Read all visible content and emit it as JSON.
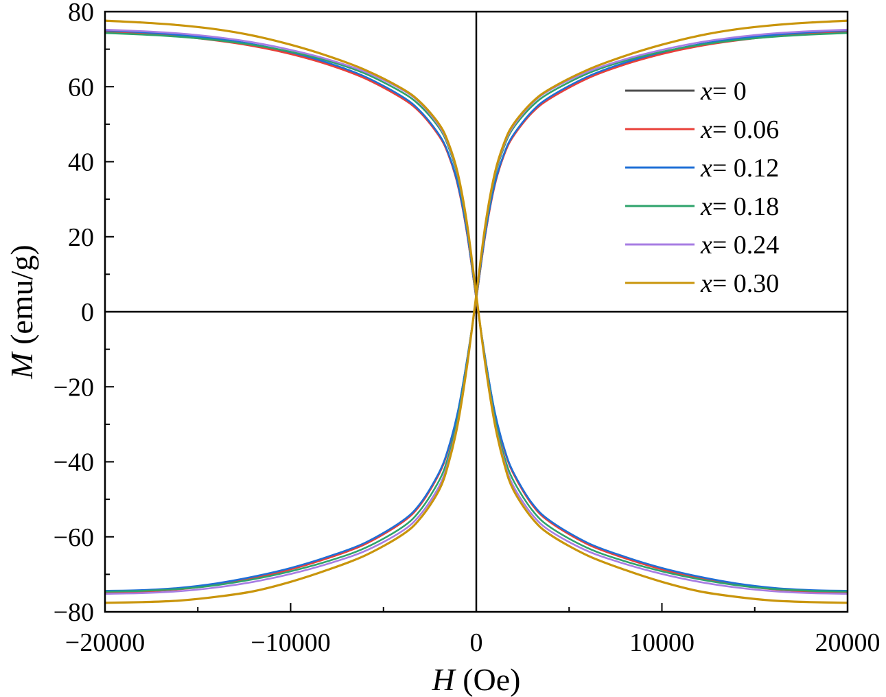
{
  "chart_data": {
    "type": "line",
    "title": "",
    "xlabel": {
      "symbol": "H",
      "unit": "(Oe)"
    },
    "ylabel": {
      "symbol": "M",
      "unit": "(emu/g)"
    },
    "xlim": [
      -20000,
      20000
    ],
    "ylim": [
      -80,
      80
    ],
    "xticks": [
      -20000,
      -10000,
      0,
      10000,
      20000
    ],
    "xtick_labels": [
      "−20000",
      "−10000",
      "0",
      "10000",
      "20000"
    ],
    "yticks": [
      -80,
      -60,
      -40,
      -20,
      0,
      20,
      40,
      60,
      80
    ],
    "ytick_labels": [
      "−80",
      "−60",
      "−40",
      "−20",
      "0",
      "20",
      "40",
      "60",
      "80"
    ],
    "grid": false,
    "zero_lines": true,
    "legend_position": "top-right",
    "x": [
      -20000,
      -18000,
      -16000,
      -14000,
      -12000,
      -10000,
      -8000,
      -6000,
      -4000,
      -3000,
      -2000,
      -1500,
      -1000,
      -500,
      0,
      500,
      1000,
      1500,
      2000,
      3000,
      4000,
      6000,
      8000,
      10000,
      12000,
      14000,
      16000,
      18000,
      20000
    ],
    "series": [
      {
        "name": "x= 0",
        "legend_var": "x",
        "legend_value": "= 0",
        "color": "#4d4d4d",
        "descending": [
          74.8,
          74.3,
          73.6,
          72.6,
          71.1,
          69.0,
          66.2,
          62.5,
          57.2,
          53.2,
          47.0,
          42.0,
          34.0,
          21.0,
          3.5,
          -13.0,
          -27.0,
          -36.5,
          -43.0,
          -51.2,
          -56.0,
          -61.8,
          -65.5,
          -68.5,
          -70.8,
          -72.6,
          -73.8,
          -74.4,
          -74.6
        ],
        "ascending": [
          -74.6,
          -74.4,
          -73.8,
          -72.6,
          -70.8,
          -68.5,
          -65.5,
          -61.8,
          -56.0,
          -51.2,
          -43.0,
          -36.5,
          -27.0,
          -13.0,
          3.5,
          21.0,
          34.0,
          42.0,
          47.0,
          53.2,
          57.2,
          62.5,
          66.2,
          69.0,
          71.1,
          72.6,
          73.6,
          74.3,
          74.8
        ]
      },
      {
        "name": "x= 0.06",
        "legend_var": "x",
        "legend_value": "= 0.06",
        "color": "#e8403a",
        "descending": [
          74.6,
          74.1,
          73.4,
          72.3,
          70.8,
          68.7,
          65.9,
          62.2,
          56.9,
          53.0,
          46.8,
          41.8,
          33.8,
          20.8,
          3.4,
          -13.2,
          -27.2,
          -36.7,
          -43.2,
          -51.4,
          -56.2,
          -62.0,
          -65.7,
          -68.7,
          -71.0,
          -72.8,
          -74.0,
          -74.6,
          -74.8
        ],
        "ascending": [
          -74.8,
          -74.6,
          -74.0,
          -72.8,
          -71.0,
          -68.7,
          -65.7,
          -62.0,
          -56.2,
          -51.4,
          -43.2,
          -36.7,
          -27.2,
          -13.2,
          3.4,
          20.8,
          33.8,
          41.8,
          46.8,
          53.0,
          56.9,
          62.2,
          65.9,
          68.7,
          70.8,
          72.3,
          73.4,
          74.1,
          74.6
        ]
      },
      {
        "name": "x= 0.12",
        "legend_var": "x",
        "legend_value": "= 0.12",
        "color": "#1f6fd6",
        "descending": [
          75.0,
          74.5,
          73.8,
          72.8,
          71.3,
          69.2,
          66.4,
          62.7,
          57.4,
          53.4,
          47.2,
          42.2,
          34.2,
          21.2,
          3.6,
          -12.8,
          -26.8,
          -36.3,
          -42.8,
          -51.0,
          -55.8,
          -61.6,
          -65.3,
          -68.3,
          -70.6,
          -72.4,
          -73.6,
          -74.2,
          -74.4
        ],
        "ascending": [
          -74.4,
          -74.2,
          -73.6,
          -72.4,
          -70.6,
          -68.3,
          -65.3,
          -61.6,
          -55.8,
          -51.0,
          -42.8,
          -36.3,
          -26.8,
          -12.8,
          3.6,
          21.2,
          34.2,
          42.2,
          47.2,
          53.4,
          57.4,
          62.7,
          66.4,
          69.2,
          71.3,
          72.8,
          73.8,
          74.5,
          75.0
        ]
      },
      {
        "name": "x= 0.18",
        "legend_var": "x",
        "legend_value": "= 0.18",
        "color": "#2ea36b",
        "descending": [
          74.3,
          73.9,
          73.3,
          72.4,
          71.1,
          69.3,
          66.9,
          63.5,
          58.5,
          54.8,
          49.0,
          44.0,
          36.0,
          22.5,
          4.0,
          -13.5,
          -28.5,
          -38.5,
          -45.0,
          -52.8,
          -57.5,
          -63.0,
          -66.5,
          -69.2,
          -71.3,
          -72.9,
          -73.9,
          -74.4,
          -74.6
        ],
        "ascending": [
          -74.6,
          -74.4,
          -73.9,
          -72.9,
          -71.3,
          -69.2,
          -66.5,
          -63.0,
          -57.5,
          -52.8,
          -45.0,
          -38.5,
          -28.5,
          -13.5,
          4.0,
          22.5,
          36.0,
          44.0,
          49.0,
          54.8,
          58.5,
          63.5,
          66.9,
          69.3,
          71.1,
          72.4,
          73.3,
          73.9,
          74.3
        ]
      },
      {
        "name": "x= 0.24",
        "legend_var": "x",
        "legend_value": "= 0.24",
        "color": "#a77de3",
        "descending": [
          75.2,
          74.8,
          74.2,
          73.2,
          71.8,
          69.8,
          67.3,
          64.0,
          59.2,
          55.5,
          49.5,
          44.5,
          36.5,
          23.0,
          4.2,
          -14.0,
          -29.5,
          -39.8,
          -46.5,
          -54.0,
          -58.5,
          -63.8,
          -67.2,
          -69.9,
          -72.0,
          -73.5,
          -74.5,
          -75.0,
          -75.2
        ],
        "ascending": [
          -75.2,
          -75.0,
          -74.5,
          -73.5,
          -72.0,
          -69.9,
          -67.2,
          -63.8,
          -58.5,
          -54.0,
          -46.5,
          -39.8,
          -29.5,
          -14.0,
          4.2,
          23.0,
          36.5,
          44.5,
          49.5,
          55.5,
          59.2,
          64.0,
          67.3,
          69.8,
          71.8,
          73.2,
          74.2,
          74.8,
          75.2
        ]
      },
      {
        "name": "x= 0.30",
        "legend_var": "x",
        "legend_value": "= 0.30",
        "color": "#c9950c",
        "descending": [
          77.6,
          77.1,
          76.4,
          75.3,
          73.6,
          71.2,
          68.2,
          64.5,
          59.5,
          55.8,
          50.0,
          45.0,
          37.0,
          23.5,
          4.5,
          -14.5,
          -30.0,
          -40.5,
          -47.5,
          -55.0,
          -59.5,
          -65.0,
          -68.8,
          -72.0,
          -74.5,
          -76.0,
          -77.0,
          -77.4,
          -77.6
        ],
        "ascending": [
          -77.6,
          -77.4,
          -77.0,
          -76.0,
          -74.5,
          -72.0,
          -68.8,
          -65.0,
          -59.5,
          -55.0,
          -47.5,
          -40.5,
          -30.0,
          -14.5,
          4.5,
          23.5,
          37.0,
          45.0,
          50.0,
          55.8,
          59.5,
          64.5,
          68.2,
          71.2,
          73.6,
          75.3,
          76.4,
          77.1,
          77.6
        ]
      }
    ]
  }
}
